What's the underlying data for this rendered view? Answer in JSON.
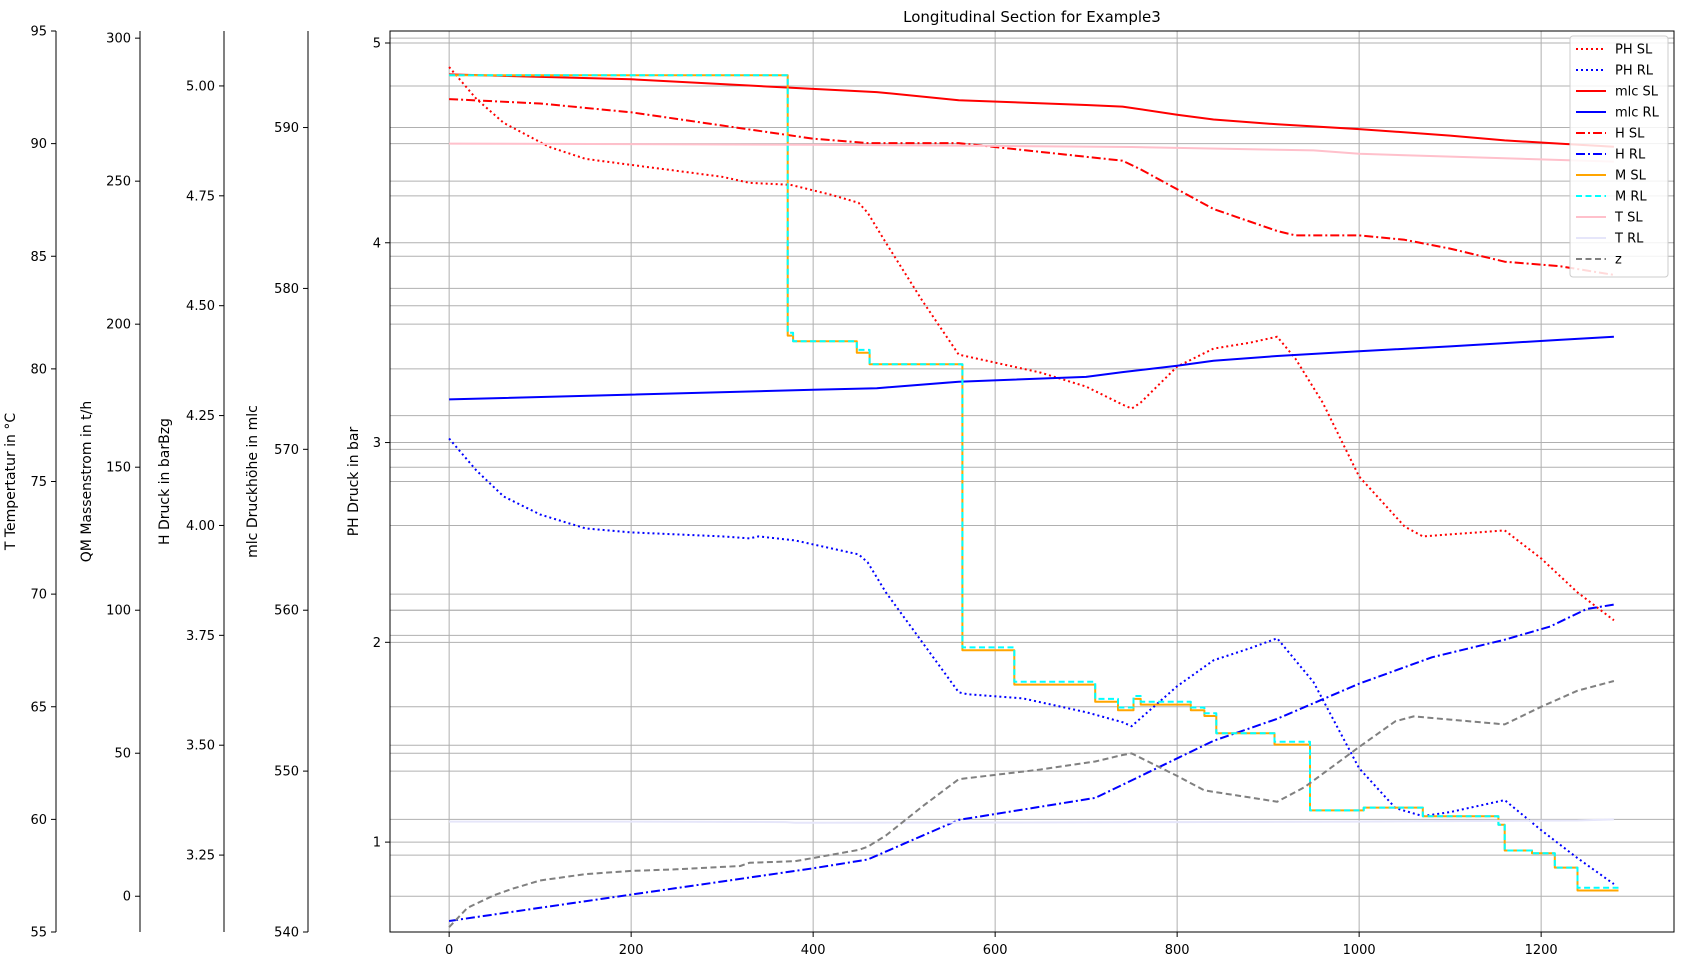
{
  "chart_data": {
    "type": "line",
    "title": "Longitudinal Section for Example3",
    "xlim": [
      -65,
      1346
    ],
    "xticks": [
      0,
      200,
      400,
      600,
      800,
      1000,
      1200
    ],
    "grid": true,
    "legend_position": "top-right",
    "axes": {
      "ph": {
        "label": "PH Druck in bar",
        "ylim": [
          0.55,
          5.06
        ],
        "ticks": [
          1,
          2,
          3,
          4,
          5
        ]
      },
      "mlc": {
        "label": "mlc Druckhöhe in mlc",
        "ylim": [
          540,
          596
        ],
        "ticks": [
          540,
          550,
          560,
          570,
          580,
          590
        ]
      },
      "h": {
        "label": "H Druck in barBzg",
        "ylim": [
          3.075,
          5.125
        ],
        "ticks": [
          3.25,
          3.5,
          3.75,
          4.0,
          4.25,
          4.5,
          4.75,
          5.0
        ],
        "tick_labels": [
          "3.25",
          "3.50",
          "3.75",
          "4.00",
          "4.25",
          "4.50",
          "4.75",
          "5.00"
        ]
      },
      "qm": {
        "label": "QM Massenstrom in t/h",
        "ylim": [
          -12.5,
          302.5
        ],
        "ticks": [
          0,
          50,
          100,
          150,
          200,
          250,
          300
        ]
      },
      "t": {
        "label": "T Tempertatur in °C",
        "ylim": [
          55,
          95
        ],
        "ticks": [
          55,
          60,
          65,
          70,
          75,
          80,
          85,
          90,
          95
        ]
      }
    },
    "series": [
      {
        "name": "PH SL",
        "axis": "ph",
        "color": "#ff0000",
        "dash": "dot",
        "x": [
          0,
          30,
          60,
          110,
          150,
          200,
          250,
          300,
          330,
          375,
          420,
          450,
          460,
          480,
          520,
          560,
          580,
          650,
          700,
          740,
          750,
          760,
          800,
          840,
          880,
          910,
          930,
          960,
          1000,
          1050,
          1070,
          1100,
          1160,
          1200,
          1240,
          1280
        ],
        "y": [
          4.88,
          4.72,
          4.6,
          4.48,
          4.42,
          4.39,
          4.36,
          4.33,
          4.3,
          4.29,
          4.24,
          4.2,
          4.15,
          4.0,
          3.71,
          3.44,
          3.42,
          3.35,
          3.28,
          3.19,
          3.17,
          3.2,
          3.38,
          3.47,
          3.5,
          3.53,
          3.42,
          3.2,
          2.83,
          2.58,
          2.53,
          2.54,
          2.56,
          2.42,
          2.25,
          2.11
        ]
      },
      {
        "name": "PH RL",
        "axis": "ph",
        "color": "#0000ff",
        "dash": "dot",
        "x": [
          0,
          30,
          60,
          100,
          150,
          200,
          250,
          300,
          330,
          340,
          380,
          420,
          450,
          460,
          480,
          520,
          560,
          570,
          630,
          700,
          740,
          750,
          760,
          800,
          840,
          880,
          910,
          950,
          1000,
          1040,
          1070,
          1100,
          1160,
          1200,
          1240,
          1280
        ],
        "y": [
          3.02,
          2.86,
          2.73,
          2.64,
          2.57,
          2.55,
          2.54,
          2.53,
          2.52,
          2.53,
          2.51,
          2.47,
          2.44,
          2.4,
          2.25,
          2.0,
          1.75,
          1.74,
          1.72,
          1.65,
          1.6,
          1.58,
          1.62,
          1.78,
          1.91,
          1.97,
          2.02,
          1.8,
          1.37,
          1.17,
          1.13,
          1.15,
          1.21,
          1.06,
          0.92,
          0.79
        ]
      },
      {
        "name": "mlc SL",
        "axis": "mlc",
        "color": "#ff0000",
        "dash": "solid",
        "x": [
          0,
          200,
          400,
          470,
          560,
          700,
          740,
          800,
          840,
          910,
          1000,
          1100,
          1160,
          1220,
          1280
        ],
        "y": [
          593.3,
          593.0,
          592.4,
          592.2,
          591.7,
          591.4,
          591.3,
          590.8,
          590.5,
          590.2,
          589.9,
          589.5,
          589.2,
          589.0,
          588.8
        ]
      },
      {
        "name": "mlc RL",
        "axis": "mlc",
        "color": "#0000ff",
        "dash": "solid",
        "x": [
          0,
          200,
          400,
          470,
          560,
          700,
          740,
          800,
          840,
          910,
          1000,
          1100,
          1160,
          1220,
          1280
        ],
        "y": [
          573.1,
          573.4,
          573.7,
          573.8,
          574.2,
          574.5,
          574.8,
          575.2,
          575.5,
          575.8,
          576.1,
          576.4,
          576.6,
          576.8,
          577.0
        ]
      },
      {
        "name": "H SL",
        "axis": "h",
        "color": "#ff0000",
        "dash": "dashdot",
        "x": [
          0,
          100,
          200,
          300,
          400,
          460,
          560,
          650,
          740,
          760,
          840,
          910,
          930,
          1000,
          1050,
          1100,
          1160,
          1220,
          1280
        ],
        "y": [
          4.97,
          4.96,
          4.94,
          4.91,
          4.88,
          4.87,
          4.87,
          4.85,
          4.83,
          4.81,
          4.72,
          4.67,
          4.66,
          4.66,
          4.65,
          4.63,
          4.6,
          4.59,
          4.57
        ]
      },
      {
        "name": "H RL",
        "axis": "h",
        "color": "#0000ff",
        "dash": "dashdot",
        "x": [
          0,
          100,
          200,
          300,
          400,
          460,
          560,
          650,
          710,
          740,
          760,
          840,
          910,
          1000,
          1080,
          1160,
          1210,
          1250,
          1280
        ],
        "y": [
          3.1,
          3.13,
          3.16,
          3.19,
          3.22,
          3.24,
          3.33,
          3.36,
          3.38,
          3.41,
          3.43,
          3.51,
          3.56,
          3.64,
          3.7,
          3.74,
          3.77,
          3.81,
          3.82
        ]
      },
      {
        "name": "M SL",
        "axis": "qm",
        "color": "#ffa500",
        "dash": "solid",
        "x": [
          0,
          372,
          372,
          378,
          378,
          448,
          448,
          462,
          462,
          564,
          564,
          621,
          621,
          710,
          710,
          735,
          735,
          752,
          752,
          760,
          760,
          815,
          815,
          830,
          830,
          843,
          843,
          907,
          907,
          946,
          946,
          1005,
          1005,
          1070,
          1070,
          1153,
          1153,
          1160,
          1160,
          1190,
          1190,
          1215,
          1215,
          1240,
          1240,
          1285
        ],
        "y": [
          287,
          287,
          196,
          196,
          194,
          194,
          190,
          190,
          186,
          186,
          86,
          86,
          74,
          74,
          68,
          68,
          65,
          65,
          69,
          69,
          67,
          67,
          65,
          65,
          63,
          63,
          57,
          57,
          53,
          53,
          30,
          30,
          31,
          31,
          28,
          28,
          25,
          25,
          16,
          16,
          15,
          15,
          10,
          10,
          2,
          2
        ]
      },
      {
        "name": "M RL",
        "axis": "qm",
        "color": "#00ffff",
        "dash": "dash",
        "x": [
          0,
          372,
          372,
          378,
          378,
          448,
          448,
          462,
          462,
          564,
          564,
          621,
          621,
          710,
          710,
          735,
          735,
          752,
          752,
          760,
          760,
          815,
          815,
          830,
          830,
          843,
          843,
          907,
          907,
          946,
          946,
          1005,
          1005,
          1070,
          1070,
          1153,
          1153,
          1160,
          1160,
          1190,
          1190,
          1215,
          1215,
          1240,
          1240,
          1285
        ],
        "y": [
          287,
          287,
          197,
          197,
          194,
          194,
          191,
          191,
          186,
          186,
          87,
          87,
          75,
          75,
          69,
          69,
          66,
          66,
          70,
          70,
          68,
          68,
          66,
          66,
          64,
          64,
          57,
          57,
          54,
          54,
          30,
          30,
          31,
          31,
          28,
          28,
          25,
          25,
          16,
          16,
          15,
          15,
          10,
          10,
          3,
          3
        ]
      },
      {
        "name": "T SL",
        "axis": "t",
        "color": "#ffc0cb",
        "dash": "solid",
        "x": [
          0,
          200,
          400,
          600,
          750,
          950,
          1000,
          1280
        ],
        "y": [
          90.0,
          89.98,
          89.95,
          89.9,
          89.85,
          89.7,
          89.55,
          89.2
        ]
      },
      {
        "name": "T RL",
        "axis": "t",
        "color": "#e6e6fa",
        "dash": "solid",
        "x": [
          0,
          200,
          370,
          380,
          600,
          800,
          1000,
          1240,
          1280
        ],
        "y": [
          59.9,
          59.9,
          59.88,
          59.85,
          59.86,
          59.88,
          59.9,
          59.95,
          60.0
        ]
      },
      {
        "name": "z",
        "axis": "mlc",
        "color": "#808080",
        "dash": "dash",
        "x": [
          0,
          20,
          50,
          70,
          100,
          150,
          200,
          250,
          320,
          330,
          380,
          420,
          450,
          460,
          480,
          520,
          560,
          650,
          710,
          740,
          750,
          800,
          830,
          910,
          940,
          1000,
          1040,
          1060,
          1100,
          1160,
          1200,
          1240,
          1280
        ],
        "y": [
          540.3,
          541.5,
          542.3,
          542.7,
          543.2,
          543.6,
          543.8,
          543.9,
          544.1,
          544.3,
          544.4,
          544.8,
          545.1,
          545.3,
          546.0,
          547.8,
          549.5,
          550.1,
          550.6,
          551.0,
          551.1,
          549.7,
          548.8,
          548.1,
          549.0,
          551.5,
          553.1,
          553.4,
          553.2,
          552.9,
          554.0,
          555.0,
          555.6
        ]
      }
    ]
  }
}
